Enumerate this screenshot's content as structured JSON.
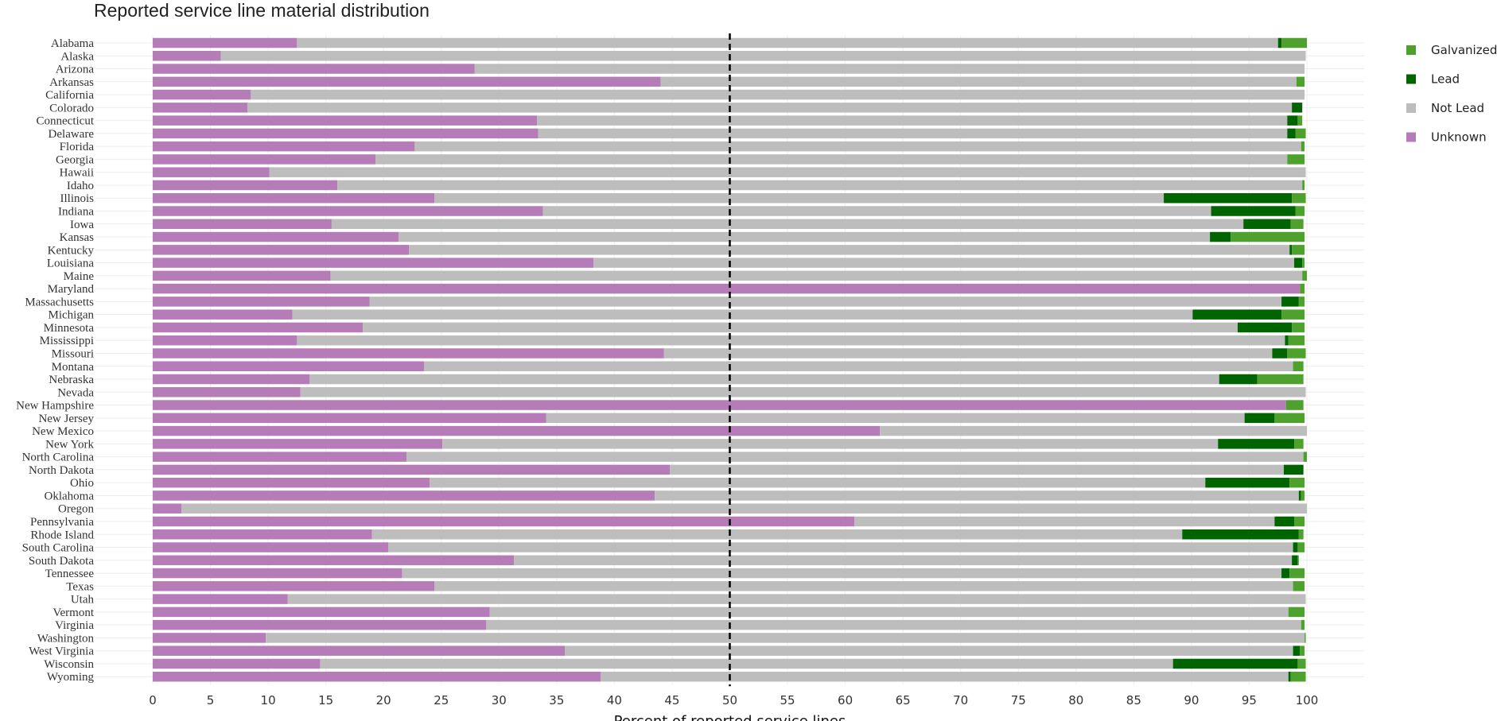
{
  "title": "Reported service line material distribution",
  "chart_data": {
    "type": "bar",
    "orientation": "horizontal",
    "stacked": true,
    "title": "Reported service line material distribution",
    "xlabel": "Percent of reported service lines",
    "ylabel": "",
    "xlim": [
      0,
      100
    ],
    "xticks": [
      0,
      5,
      10,
      15,
      20,
      25,
      30,
      35,
      40,
      45,
      50,
      55,
      60,
      65,
      70,
      75,
      80,
      85,
      90,
      95,
      100
    ],
    "reference_line": {
      "x": 50,
      "style": "dashed",
      "color": "#000000"
    },
    "grid": true,
    "legend_position": "right",
    "legend": [
      "Galvanized",
      "Lead",
      "Not Lead",
      "Unknown"
    ],
    "colors": {
      "Unknown": "#b57cb8",
      "Not Lead": "#bdbdbd",
      "Lead": "#006400",
      "Galvanized": "#4ea12c"
    },
    "categories": [
      "Alabama",
      "Alaska",
      "Arizona",
      "Arkansas",
      "California",
      "Colorado",
      "Connecticut",
      "Delaware",
      "Florida",
      "Georgia",
      "Hawaii",
      "Idaho",
      "Illinois",
      "Indiana",
      "Iowa",
      "Kansas",
      "Kentucky",
      "Louisiana",
      "Maine",
      "Maryland",
      "Massachusetts",
      "Michigan",
      "Minnesota",
      "Mississippi",
      "Missouri",
      "Montana",
      "Nebraska",
      "Nevada",
      "New Hampshire",
      "New Jersey",
      "New Mexico",
      "New York",
      "North Carolina",
      "North Dakota",
      "Ohio",
      "Oklahoma",
      "Oregon",
      "Pennsylvania",
      "Rhode Island",
      "South Carolina",
      "South Dakota",
      "Tennessee",
      "Texas",
      "Utah",
      "Vermont",
      "Virginia",
      "Washington",
      "West Virginia",
      "Wisconsin",
      "Wyoming"
    ],
    "series": [
      {
        "name": "Unknown",
        "values": [
          12.5,
          5.9,
          27.9,
          44.0,
          8.5,
          8.2,
          33.3,
          33.4,
          22.7,
          19.3,
          10.1,
          16.0,
          24.4,
          33.8,
          15.5,
          21.3,
          22.2,
          38.2,
          15.4,
          99.4,
          18.8,
          12.1,
          18.2,
          12.5,
          44.3,
          23.5,
          13.6,
          12.8,
          98.2,
          34.1,
          63.0,
          25.1,
          22.0,
          44.8,
          24.0,
          43.5,
          2.5,
          60.8,
          19.0,
          20.4,
          31.3,
          21.6,
          24.4,
          11.7,
          29.2,
          28.9,
          9.8,
          35.7,
          14.5,
          38.8
        ]
      },
      {
        "name": "Not Lead",
        "values": [
          85.0,
          94.0,
          71.9,
          55.1,
          91.3,
          90.5,
          65.0,
          64.9,
          76.8,
          79.0,
          89.8,
          83.6,
          63.2,
          57.9,
          79.0,
          70.3,
          76.3,
          60.7,
          84.2,
          0.0,
          79.0,
          78.0,
          75.8,
          85.6,
          52.7,
          75.3,
          78.8,
          87.1,
          0.0,
          60.5,
          37.0,
          67.2,
          77.7,
          53.2,
          67.2,
          55.8,
          97.5,
          36.4,
          70.2,
          78.4,
          67.4,
          76.2,
          74.4,
          88.2,
          69.2,
          70.6,
          90.0,
          63.1,
          73.9,
          59.6
        ]
      },
      {
        "name": "Lead",
        "values": [
          0.3,
          0.0,
          0.0,
          0.0,
          0.0,
          0.9,
          0.9,
          0.7,
          0.0,
          0.0,
          0.0,
          0.0,
          11.1,
          7.3,
          4.1,
          1.8,
          0.2,
          0.7,
          0.0,
          0.0,
          1.5,
          7.7,
          4.7,
          0.3,
          1.3,
          0.0,
          3.3,
          0.0,
          0.0,
          2.6,
          0.0,
          6.6,
          0.0,
          1.7,
          7.3,
          0.2,
          0.0,
          1.7,
          10.1,
          0.4,
          0.5,
          0.7,
          0.0,
          0.0,
          0.0,
          0.0,
          0.0,
          0.6,
          10.8,
          0.2
        ]
      },
      {
        "name": "Galvanized",
        "values": [
          2.2,
          0.0,
          0.0,
          0.7,
          0.0,
          0.0,
          0.4,
          0.9,
          0.3,
          1.5,
          0.0,
          0.2,
          1.2,
          0.8,
          1.1,
          6.4,
          1.1,
          0.2,
          0.4,
          0.4,
          0.5,
          2.0,
          1.1,
          1.4,
          1.6,
          0.9,
          4.0,
          0.0,
          1.5,
          2.6,
          0.0,
          0.8,
          0.3,
          0.0,
          1.3,
          0.3,
          0.0,
          0.9,
          0.4,
          0.6,
          0.1,
          1.3,
          1.0,
          0.0,
          1.4,
          0.3,
          0.1,
          0.4,
          0.7,
          1.3
        ]
      }
    ]
  }
}
